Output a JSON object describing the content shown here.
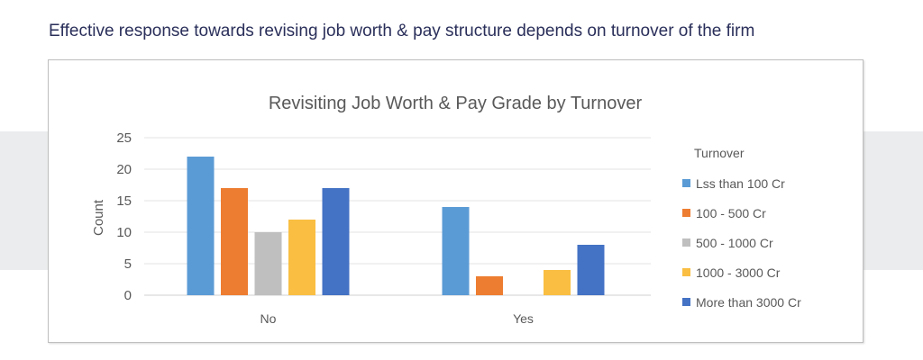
{
  "heading": "Effective response towards revising job worth & pay structure depends on turnover of the firm",
  "chart_data": {
    "type": "bar",
    "title": "Revisiting Job Worth & Pay Grade by Turnover",
    "xlabel": "",
    "ylabel": "Count",
    "ylim": [
      0,
      25
    ],
    "yticks": [
      0,
      5,
      10,
      15,
      20,
      25
    ],
    "grid": true,
    "legend_title": "Turnover",
    "legend_position": "right",
    "categories": [
      "No",
      "Yes"
    ],
    "series": [
      {
        "name": "Lss than 100 Cr",
        "color": "#5b9bd5",
        "values": [
          22,
          14
        ]
      },
      {
        "name": "100 - 500 Cr",
        "color": "#ed7d31",
        "values": [
          17,
          3
        ]
      },
      {
        "name": "500 - 1000 Cr",
        "color": "#bfbfbf",
        "values": [
          10,
          0
        ]
      },
      {
        "name": "1000 - 3000 Cr",
        "color": "#f9be42",
        "values": [
          12,
          4
        ]
      },
      {
        "name": "More than 3000 Cr",
        "color": "#4472c4",
        "values": [
          17,
          8
        ]
      }
    ]
  }
}
